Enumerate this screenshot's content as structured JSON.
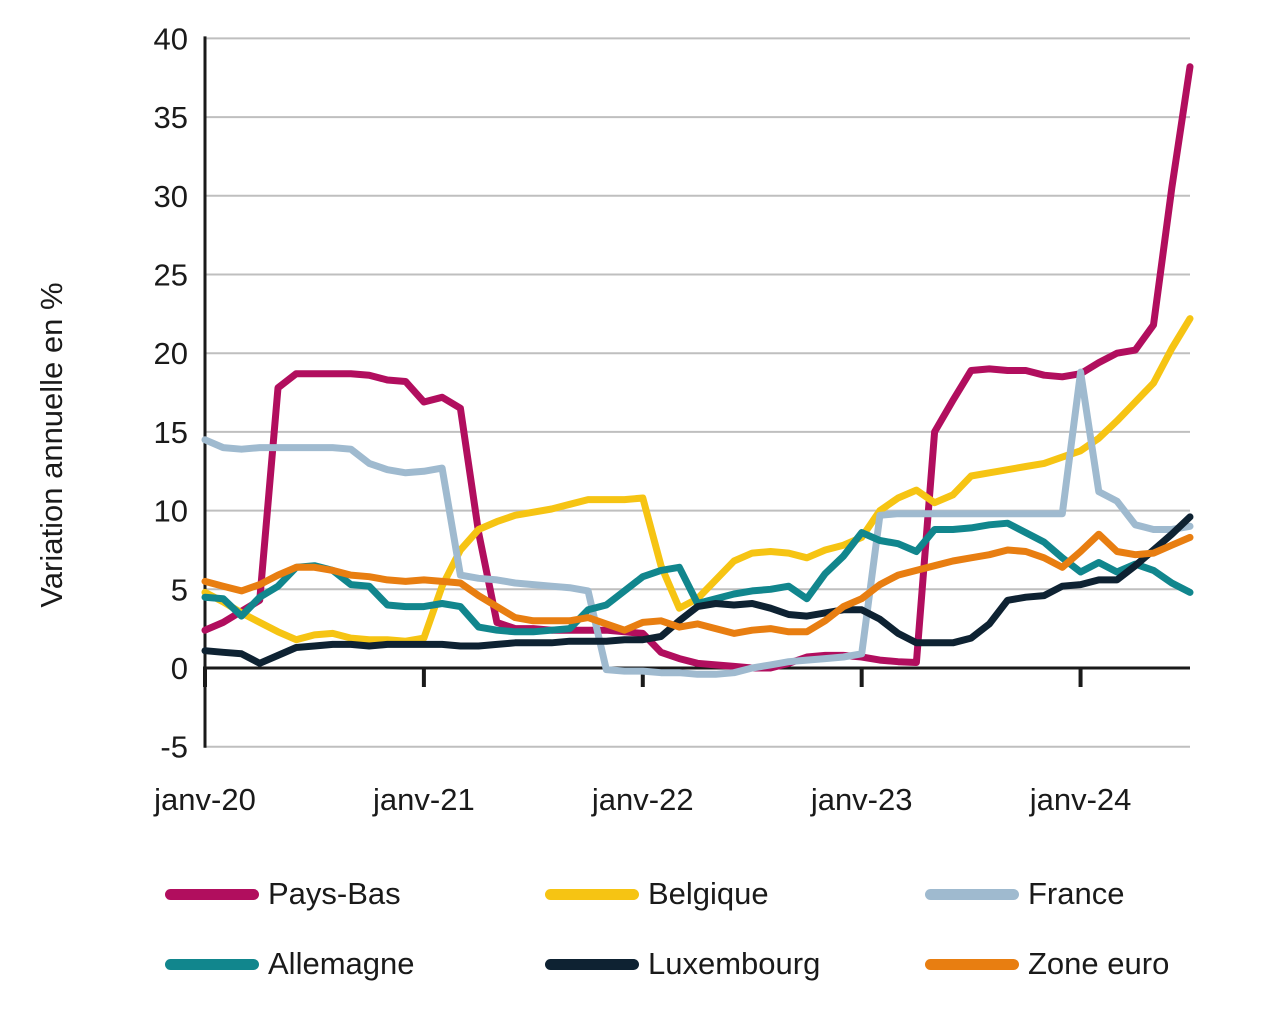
{
  "chart_data": {
    "type": "line",
    "title": "",
    "ylabel": "Variation annuelle en %",
    "ylim": [
      -5,
      40
    ],
    "yticks": [
      40,
      35,
      30,
      25,
      20,
      15,
      10,
      5,
      0,
      -5
    ],
    "grid": "horizontal",
    "legend_position": "bottom",
    "n_points": 55,
    "x_start": "janv-20",
    "x_end": "juil-24",
    "x_tick_labels": [
      "janv-20",
      "janv-21",
      "janv-22",
      "janv-23",
      "janv-24"
    ],
    "x_tick_indices": [
      0,
      12,
      24,
      36,
      48
    ],
    "axis_color": "#1a1a1a",
    "gridline_color": "#bfbfbf",
    "series": [
      {
        "name": "Pays-Bas",
        "color": "#B10E5E",
        "values": [
          2.4,
          2.9,
          3.6,
          4.3,
          17.8,
          18.7,
          18.7,
          18.7,
          18.7,
          18.6,
          18.3,
          18.2,
          16.9,
          17.2,
          16.5,
          8.6,
          2.9,
          2.5,
          2.5,
          2.4,
          2.4,
          2.4,
          2.4,
          2.3,
          2.2,
          1.0,
          0.6,
          0.3,
          0.2,
          0.1,
          0.0,
          0.0,
          0.3,
          0.7,
          0.8,
          0.8,
          0.7,
          0.5,
          0.4,
          0.35,
          15.0,
          17.0,
          18.9,
          19.0,
          18.9,
          18.9,
          18.6,
          18.5,
          18.7,
          19.4,
          20.0,
          20.2,
          21.8,
          30.5,
          38.2
        ]
      },
      {
        "name": "Belgique",
        "color": "#F6C413",
        "values": [
          4.8,
          4.2,
          3.5,
          2.9,
          2.3,
          1.8,
          2.1,
          2.2,
          1.9,
          1.8,
          1.8,
          1.7,
          1.9,
          5.2,
          7.5,
          8.8,
          9.3,
          9.7,
          9.9,
          10.1,
          10.4,
          10.7,
          10.7,
          10.7,
          10.8,
          6.5,
          3.8,
          4.4,
          5.6,
          6.8,
          7.3,
          7.4,
          7.3,
          7.0,
          7.5,
          7.8,
          8.3,
          10.0,
          10.8,
          11.3,
          10.5,
          11.0,
          12.2,
          12.4,
          12.6,
          12.8,
          13.0,
          13.4,
          13.8,
          14.6,
          15.7,
          16.9,
          18.1,
          20.3,
          22.2
        ]
      },
      {
        "name": "France",
        "color": "#9FBACF",
        "values": [
          14.5,
          14.0,
          13.9,
          14.0,
          14.0,
          14.0,
          14.0,
          14.0,
          13.9,
          13.0,
          12.6,
          12.4,
          12.5,
          12.7,
          5.9,
          5.7,
          5.6,
          5.4,
          5.3,
          5.2,
          5.1,
          4.9,
          -0.1,
          -0.2,
          -0.2,
          -0.3,
          -0.3,
          -0.4,
          -0.4,
          -0.3,
          0.0,
          0.2,
          0.4,
          0.5,
          0.6,
          0.7,
          0.9,
          9.7,
          9.8,
          9.8,
          9.8,
          9.8,
          9.8,
          9.8,
          9.8,
          9.8,
          9.8,
          9.8,
          18.8,
          11.2,
          10.6,
          9.1,
          8.8,
          8.8,
          9.0
        ]
      },
      {
        "name": "Allemagne",
        "color": "#11868D",
        "values": [
          4.5,
          4.4,
          3.3,
          4.5,
          5.2,
          6.4,
          6.5,
          6.2,
          5.3,
          5.2,
          4.0,
          3.9,
          3.9,
          4.1,
          3.9,
          2.6,
          2.4,
          2.3,
          2.3,
          2.4,
          2.5,
          3.7,
          4.0,
          4.9,
          5.8,
          6.2,
          6.4,
          4.1,
          4.4,
          4.7,
          4.9,
          5.0,
          5.2,
          4.4,
          6.0,
          7.1,
          8.6,
          8.1,
          7.9,
          7.4,
          8.8,
          8.8,
          8.9,
          9.1,
          9.2,
          8.6,
          8.0,
          7.0,
          6.1,
          6.7,
          6.1,
          6.6,
          6.2,
          5.4,
          4.8
        ]
      },
      {
        "name": "Luxembourg",
        "color": "#0E2232",
        "values": [
          1.1,
          1.0,
          0.9,
          0.3,
          0.8,
          1.3,
          1.4,
          1.5,
          1.5,
          1.4,
          1.5,
          1.5,
          1.5,
          1.5,
          1.4,
          1.4,
          1.5,
          1.6,
          1.6,
          1.6,
          1.7,
          1.7,
          1.7,
          1.8,
          1.8,
          2.0,
          3.0,
          3.9,
          4.1,
          4.0,
          4.1,
          3.8,
          3.4,
          3.3,
          3.5,
          3.7,
          3.7,
          3.1,
          2.2,
          1.6,
          1.6,
          1.6,
          1.9,
          2.8,
          4.3,
          4.5,
          4.6,
          5.2,
          5.3,
          5.6,
          5.6,
          6.5,
          7.5,
          8.5,
          9.6
        ]
      },
      {
        "name": "Zone euro",
        "color": "#E87E11",
        "values": [
          5.5,
          5.2,
          4.9,
          5.3,
          5.9,
          6.4,
          6.4,
          6.2,
          5.9,
          5.8,
          5.6,
          5.5,
          5.6,
          5.5,
          5.4,
          4.6,
          3.9,
          3.2,
          3.0,
          3.0,
          3.0,
          3.2,
          2.8,
          2.4,
          2.9,
          3.0,
          2.6,
          2.8,
          2.5,
          2.2,
          2.4,
          2.5,
          2.3,
          2.3,
          3.0,
          3.9,
          4.4,
          5.3,
          5.9,
          6.2,
          6.5,
          6.8,
          7.0,
          7.2,
          7.5,
          7.4,
          7.0,
          6.4,
          7.4,
          8.5,
          7.4,
          7.2,
          7.3,
          7.8,
          8.3
        ]
      }
    ]
  },
  "legend": {
    "items": [
      {
        "label": "Pays-Bas",
        "color": "#B10E5E"
      },
      {
        "label": "Belgique",
        "color": "#F6C413"
      },
      {
        "label": "France",
        "color": "#9FBACF"
      },
      {
        "label": "Allemagne",
        "color": "#11868D"
      },
      {
        "label": "Luxembourg",
        "color": "#0E2232"
      },
      {
        "label": "Zone euro",
        "color": "#E87E11"
      }
    ]
  }
}
